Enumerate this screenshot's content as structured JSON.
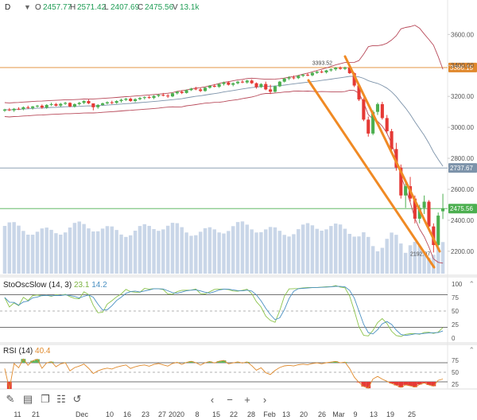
{
  "header": {
    "symbol": "D",
    "chevron": "▼",
    "o_label": "O",
    "o_value": "2457.77",
    "h_label": "H",
    "h_value": "2571.42",
    "l_label": "L",
    "l_value": "2407.69",
    "c_label": "C",
    "c_value": "2475.56",
    "v_label": "V",
    "v_value": "13.1k"
  },
  "price_axis": {
    "ticks": [
      "3600.00",
      "3400.00",
      "3200.00",
      "3000.00",
      "2800.00",
      "2600.00",
      "2400.00",
      "2200.00"
    ],
    "tick_values": [
      3600,
      3400,
      3200,
      3000,
      2800,
      2600,
      2400,
      2200
    ],
    "range": [
      2045,
      3730
    ],
    "tags": [
      {
        "value": 3386.15,
        "label": "3386.15",
        "color": "#e0882c"
      },
      {
        "value": 2737.67,
        "label": "2737.67",
        "color": "#7d93aa"
      },
      {
        "value": 2475.56,
        "label": "2475.56",
        "color": "#4caf50"
      }
    ]
  },
  "annotations": {
    "high": "3393.52",
    "low": "2192.07"
  },
  "stoch": {
    "title": "StoOscSlow (14, 3)",
    "k_value": "23.1",
    "d_value": "14.2",
    "ticks": [
      "100",
      "75",
      "50",
      "25",
      "0"
    ],
    "tick_values": [
      100,
      75,
      50,
      25,
      0
    ]
  },
  "rsi": {
    "title": "RSI (14)",
    "value": "40.4",
    "ticks": [
      "75",
      "50",
      "25"
    ],
    "tick_values": [
      75,
      50,
      25
    ]
  },
  "x_axis": {
    "labels": [
      "11",
      "21",
      "Dec",
      "10",
      "16",
      "23",
      "27",
      "2020",
      "8",
      "15",
      "22",
      "28",
      "Feb",
      "13",
      "20",
      "26",
      "Mar",
      "9",
      "13",
      "19",
      "25"
    ]
  },
  "toolbar": {
    "draw_icon": "✎",
    "page_icon": "▤",
    "layers_icon": "❐",
    "settings_icon": "☷",
    "reset_icon": "↺",
    "left": "‹",
    "minus": "−",
    "plus": "+",
    "right": "›"
  },
  "colors": {
    "up": "#4caf50",
    "down": "#e53935",
    "volume": "#c9d6e8",
    "bb_upper": "#b84a5a",
    "bb_mid": "#7d93aa",
    "bb_lower": "#b84a5a",
    "channel": "#f08a24",
    "stoch_k": "#8bc34a",
    "stoch_d": "#4a90c2",
    "rsi": "#e08a2c",
    "rsi_fill": "#5cb85c",
    "rsi_low": "#e53935"
  },
  "chart_data": {
    "type": "candlestick",
    "title": "D",
    "ylim": [
      2045,
      3730
    ],
    "x": [
      "11",
      "21",
      "Dec",
      "10",
      "16",
      "23",
      "27",
      "2020",
      "8",
      "15",
      "22",
      "28",
      "Feb",
      "13",
      "20",
      "26",
      "Mar",
      "9",
      "13",
      "19",
      "25"
    ],
    "horizontal_levels": [
      3386.15,
      2737.67,
      2475.56
    ],
    "candles": [
      [
        3108,
        3120,
        3100,
        3115
      ],
      [
        3115,
        3125,
        3105,
        3110
      ],
      [
        3110,
        3125,
        3100,
        3120
      ],
      [
        3120,
        3130,
        3112,
        3118
      ],
      [
        3118,
        3135,
        3110,
        3130
      ],
      [
        3130,
        3140,
        3120,
        3125
      ],
      [
        3125,
        3138,
        3115,
        3135
      ],
      [
        3135,
        3145,
        3128,
        3140
      ],
      [
        3140,
        3148,
        3120,
        3128
      ],
      [
        3128,
        3150,
        3120,
        3145
      ],
      [
        3145,
        3160,
        3138,
        3150
      ],
      [
        3150,
        3158,
        3135,
        3140
      ],
      [
        3140,
        3158,
        3132,
        3152
      ],
      [
        3152,
        3165,
        3145,
        3158
      ],
      [
        3158,
        3162,
        3130,
        3135
      ],
      [
        3135,
        3155,
        3128,
        3150
      ],
      [
        3150,
        3165,
        3142,
        3158
      ],
      [
        3158,
        3175,
        3150,
        3170
      ],
      [
        3170,
        3180,
        3150,
        3155
      ],
      [
        3155,
        3140,
        3110,
        3130
      ],
      [
        3130,
        3150,
        3120,
        3145
      ],
      [
        3145,
        3160,
        3140,
        3155
      ],
      [
        3155,
        3168,
        3148,
        3162
      ],
      [
        3162,
        3172,
        3150,
        3158
      ],
      [
        3158,
        3175,
        3152,
        3170
      ],
      [
        3170,
        3185,
        3160,
        3178
      ],
      [
        3178,
        3190,
        3170,
        3185
      ],
      [
        3185,
        3192,
        3165,
        3170
      ],
      [
        3170,
        3188,
        3162,
        3182
      ],
      [
        3182,
        3196,
        3175,
        3190
      ],
      [
        3190,
        3200,
        3180,
        3195
      ],
      [
        3195,
        3205,
        3185,
        3190
      ],
      [
        3190,
        3208,
        3182,
        3203
      ],
      [
        3203,
        3215,
        3195,
        3210
      ],
      [
        3210,
        3222,
        3200,
        3205
      ],
      [
        3205,
        3215,
        3190,
        3200
      ],
      [
        3200,
        3225,
        3195,
        3220
      ],
      [
        3220,
        3235,
        3212,
        3230
      ],
      [
        3230,
        3240,
        3215,
        3222
      ],
      [
        3222,
        3245,
        3218,
        3240
      ],
      [
        3240,
        3255,
        3235,
        3250
      ],
      [
        3250,
        3262,
        3240,
        3245
      ],
      [
        3245,
        3255,
        3228,
        3235
      ],
      [
        3235,
        3260,
        3230,
        3256
      ],
      [
        3256,
        3272,
        3250,
        3268
      ],
      [
        3268,
        3280,
        3258,
        3262
      ],
      [
        3262,
        3285,
        3255,
        3280
      ],
      [
        3280,
        3295,
        3270,
        3290
      ],
      [
        3290,
        3298,
        3270,
        3275
      ],
      [
        3275,
        3290,
        3265,
        3285
      ],
      [
        3285,
        3300,
        3278,
        3295
      ],
      [
        3295,
        3305,
        3285,
        3290
      ],
      [
        3290,
        3308,
        3282,
        3302
      ],
      [
        3302,
        3310,
        3280,
        3285
      ],
      [
        3285,
        3290,
        3250,
        3260
      ],
      [
        3260,
        3285,
        3255,
        3280
      ],
      [
        3280,
        3295,
        3240,
        3245
      ],
      [
        3245,
        3275,
        3215,
        3230
      ],
      [
        3230,
        3270,
        3225,
        3265
      ],
      [
        3265,
        3300,
        3260,
        3295
      ],
      [
        3295,
        3320,
        3290,
        3315
      ],
      [
        3315,
        3330,
        3305,
        3322
      ],
      [
        3322,
        3335,
        3310,
        3318
      ],
      [
        3318,
        3338,
        3312,
        3333
      ],
      [
        3333,
        3345,
        3325,
        3340
      ],
      [
        3340,
        3352,
        3330,
        3336
      ],
      [
        3336,
        3358,
        3330,
        3352
      ],
      [
        3352,
        3365,
        3345,
        3360
      ],
      [
        3360,
        3370,
        3350,
        3355
      ],
      [
        3355,
        3372,
        3348,
        3368
      ],
      [
        3368,
        3380,
        3360,
        3375
      ],
      [
        3375,
        3390,
        3365,
        3385
      ],
      [
        3385,
        3393,
        3372,
        3378
      ],
      [
        3378,
        3392,
        3370,
        3386
      ],
      [
        3386,
        3390,
        3345,
        3350
      ],
      [
        3350,
        3355,
        3260,
        3270
      ],
      [
        3270,
        3280,
        3170,
        3180
      ],
      [
        3180,
        3190,
        3040,
        3050
      ],
      [
        3050,
        3070,
        2940,
        2960
      ],
      [
        2960,
        3110,
        2950,
        3100
      ],
      [
        3100,
        3160,
        3080,
        3150
      ],
      [
        3150,
        3165,
        3050,
        3060
      ],
      [
        3060,
        3080,
        2960,
        2975
      ],
      [
        2975,
        2990,
        2840,
        2860
      ],
      [
        2860,
        2900,
        2720,
        2740
      ],
      [
        2740,
        2760,
        2540,
        2560
      ],
      [
        2560,
        2640,
        2480,
        2620
      ],
      [
        2620,
        2680,
        2520,
        2540
      ],
      [
        2540,
        2560,
        2380,
        2410
      ],
      [
        2410,
        2500,
        2380,
        2480
      ],
      [
        2480,
        2560,
        2440,
        2520
      ],
      [
        2520,
        2530,
        2330,
        2360
      ],
      [
        2360,
        2380,
        2192,
        2240
      ],
      [
        2240,
        2450,
        2230,
        2430
      ],
      [
        2458,
        2571,
        2408,
        2476
      ]
    ]
  }
}
